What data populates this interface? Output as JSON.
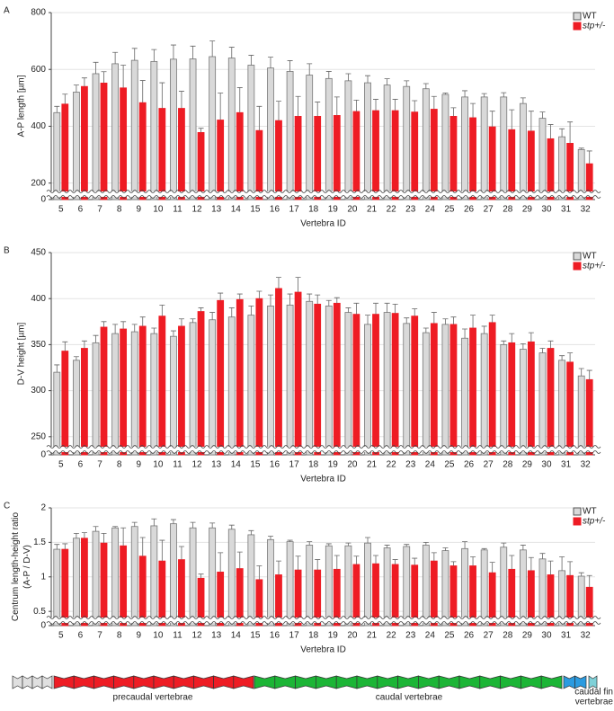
{
  "chart_data": [
    {
      "type": "bar",
      "panel_label": "A",
      "ylabel": [
        "A-P length [µm]"
      ],
      "xlabel": "Vertebra ID",
      "categories": [
        5,
        6,
        7,
        8,
        9,
        10,
        11,
        12,
        13,
        14,
        15,
        16,
        17,
        18,
        19,
        20,
        21,
        22,
        23,
        24,
        25,
        26,
        27,
        28,
        29,
        30,
        31,
        32
      ],
      "series": [
        {
          "name": "WT",
          "color": "#d9d9d9",
          "values": [
            448,
            520,
            585,
            620,
            632,
            628,
            636,
            637,
            645,
            640,
            615,
            605,
            593,
            580,
            568,
            560,
            553,
            545,
            540,
            532,
            512,
            503,
            503,
            503,
            480,
            428,
            363,
            318
          ],
          "errors": [
            22,
            25,
            40,
            40,
            42,
            42,
            50,
            45,
            55,
            38,
            35,
            38,
            38,
            40,
            25,
            25,
            25,
            22,
            20,
            18,
            5,
            22,
            12,
            15,
            20,
            22,
            28,
            5
          ]
        },
        {
          "name": "stp+/-",
          "color": "#ee1c24",
          "values": [
            478,
            540,
            552,
            535,
            483,
            463,
            463,
            378,
            422,
            448,
            385,
            420,
            435,
            435,
            438,
            452,
            455,
            455,
            450,
            460,
            435,
            430,
            398,
            388,
            383,
            356,
            340,
            268
          ],
          "errors": [
            35,
            30,
            40,
            80,
            78,
            90,
            60,
            15,
            95,
            88,
            85,
            68,
            70,
            50,
            65,
            40,
            40,
            40,
            40,
            45,
            30,
            50,
            55,
            70,
            70,
            50,
            75,
            45
          ]
        }
      ],
      "ylim": [
        0,
        800
      ],
      "ybreak": 180,
      "yticks": [
        0,
        200,
        400,
        600,
        800
      ],
      "grid": true,
      "legend": "top-right"
    },
    {
      "type": "bar",
      "panel_label": "B",
      "ylabel": [
        "D-V height [µm]"
      ],
      "xlabel": "Vertebra ID",
      "categories": [
        5,
        6,
        7,
        8,
        9,
        10,
        11,
        12,
        13,
        14,
        15,
        16,
        17,
        18,
        19,
        20,
        21,
        22,
        23,
        24,
        25,
        26,
        27,
        28,
        29,
        30,
        31,
        32
      ],
      "series": [
        {
          "name": "WT",
          "color": "#d9d9d9",
          "values": [
            320,
            333,
            352,
            362,
            364,
            362,
            359,
            374,
            377,
            380,
            382,
            392,
            393,
            397,
            392,
            385,
            372,
            385,
            373,
            363,
            372,
            357,
            362,
            350,
            345,
            341,
            333,
            316
          ],
          "errors": [
            8,
            4,
            8,
            10,
            8,
            6,
            6,
            4,
            8,
            10,
            10,
            12,
            12,
            8,
            6,
            5,
            10,
            10,
            6,
            5,
            6,
            10,
            8,
            4,
            6,
            5,
            5,
            8
          ]
        },
        {
          "name": "stp+/-",
          "color": "#ee1c24",
          "values": [
            343,
            346,
            369,
            367,
            370,
            381,
            370,
            386,
            398,
            399,
            400,
            411,
            407,
            394,
            395,
            383,
            383,
            384,
            381,
            373,
            372,
            368,
            374,
            352,
            353,
            346,
            331,
            312
          ],
          "errors": [
            10,
            8,
            6,
            8,
            10,
            12,
            8,
            4,
            8,
            6,
            8,
            12,
            16,
            10,
            6,
            12,
            12,
            10,
            8,
            12,
            8,
            14,
            8,
            10,
            10,
            8,
            10,
            10
          ]
        }
      ],
      "ylim": [
        0,
        450
      ],
      "ybreak": 242,
      "yticks": [
        0,
        250,
        300,
        350,
        400,
        450
      ],
      "grid": true,
      "legend": "top-right"
    },
    {
      "type": "bar",
      "panel_label": "C",
      "ylabel": [
        "Centrum length-height ratio",
        "(A-P / D-V)"
      ],
      "xlabel": "Vertebra ID",
      "categories": [
        5,
        6,
        7,
        8,
        9,
        10,
        11,
        12,
        13,
        14,
        15,
        16,
        17,
        18,
        19,
        20,
        21,
        22,
        23,
        24,
        25,
        26,
        27,
        28,
        29,
        30,
        31,
        32
      ],
      "series": [
        {
          "name": "WT",
          "color": "#d9d9d9",
          "values": [
            1.4,
            1.56,
            1.66,
            1.71,
            1.73,
            1.74,
            1.77,
            1.71,
            1.71,
            1.69,
            1.61,
            1.54,
            1.51,
            1.46,
            1.45,
            1.45,
            1.49,
            1.42,
            1.44,
            1.46,
            1.38,
            1.41,
            1.39,
            1.43,
            1.39,
            1.26,
            1.09,
            1.01
          ],
          "errors": [
            0.07,
            0.07,
            0.07,
            0.02,
            0.06,
            0.1,
            0.06,
            0.08,
            0.07,
            0.06,
            0.06,
            0.05,
            0.02,
            0.05,
            0.03,
            0.04,
            0.08,
            0.04,
            0.03,
            0.04,
            0.04,
            0.1,
            0.02,
            0.06,
            0.07,
            0.08,
            0.2,
            0.05
          ]
        },
        {
          "name": "stp+/-",
          "color": "#ee1c24",
          "values": [
            1.4,
            1.56,
            1.49,
            1.45,
            1.3,
            1.23,
            1.25,
            0.98,
            1.07,
            1.12,
            0.96,
            1.03,
            1.1,
            1.1,
            1.11,
            1.18,
            1.19,
            1.18,
            1.17,
            1.23,
            1.16,
            1.16,
            1.06,
            1.11,
            1.09,
            1.03,
            1.02,
            0.85
          ],
          "errors": [
            0.08,
            0.08,
            0.14,
            0.26,
            0.27,
            0.3,
            0.19,
            0.06,
            0.28,
            0.24,
            0.2,
            0.2,
            0.2,
            0.15,
            0.2,
            0.12,
            0.12,
            0.07,
            0.1,
            0.12,
            0.06,
            0.13,
            0.15,
            0.2,
            0.19,
            0.2,
            0.2,
            0.17
          ]
        }
      ],
      "ylim": [
        0,
        2
      ],
      "ybreak": 0.45,
      "yticks": [
        0,
        0.5,
        1,
        1.5,
        2
      ],
      "grid": true,
      "legend": "top-right"
    }
  ],
  "diagram": {
    "labels": [
      [
        "precaudal vertebrae"
      ],
      [
        "caudal vertebrae"
      ],
      [
        "caudal fin",
        "vertebrae"
      ]
    ]
  }
}
